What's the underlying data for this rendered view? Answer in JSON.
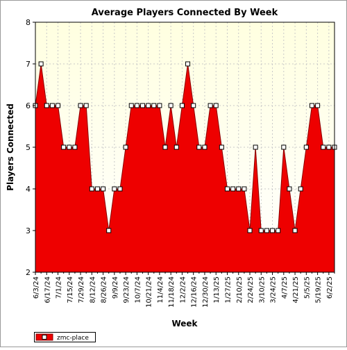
{
  "chart_data": {
    "type": "area",
    "title": "Average Players Connected By Week",
    "xlabel": "Week",
    "ylabel": "Players Connected",
    "ylim": [
      2,
      8
    ],
    "yticks": [
      2,
      3,
      4,
      5,
      6,
      7,
      8
    ],
    "grid": true,
    "legend_position": "bottom-left",
    "colors": {
      "fill": "#ee0000",
      "stroke": "#8b0000",
      "plot_background": "#ffffe0",
      "marker": "#ffffff"
    },
    "x_tick_labels": [
      "6/3/24",
      "6/17/24",
      "7/1/24",
      "7/15/24",
      "7/29/24",
      "8/12/24",
      "8/26/24",
      "9/9/24",
      "9/23/24",
      "10/7/24",
      "10/21/24",
      "11/4/24",
      "11/18/24",
      "12/2/24",
      "12/16/24",
      "12/30/24",
      "1/13/25",
      "1/27/25",
      "2/10/25",
      "2/24/25",
      "3/10/25",
      "3/24/25",
      "4/7/25",
      "4/21/25",
      "5/5/25",
      "5/19/25",
      "6/2/25"
    ],
    "series": [
      {
        "name": "zmc-place",
        "values": [
          6,
          7,
          6,
          6,
          6,
          5,
          5,
          5,
          6,
          6,
          4,
          4,
          4,
          3,
          4,
          4,
          5,
          6,
          6,
          6,
          6,
          6,
          6,
          5,
          6,
          5,
          6,
          7,
          6,
          5,
          5,
          6,
          6,
          5,
          4,
          4,
          4,
          4,
          3,
          5,
          3,
          3,
          3,
          3,
          5,
          4,
          3,
          4,
          5,
          6,
          6,
          5,
          5,
          5
        ]
      }
    ]
  }
}
